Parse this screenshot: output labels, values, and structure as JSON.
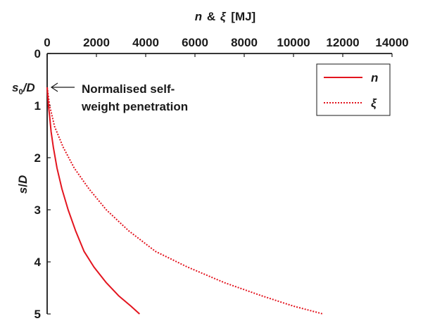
{
  "chart_data": {
    "type": "line",
    "title": "",
    "xlabel_parts": {
      "n": "n",
      "amp": "&",
      "xi": "ξ",
      "unit": "[MJ]"
    },
    "ylabel_parts": {
      "s": "s",
      "slash": "/",
      "D": "D"
    },
    "x_axis_position": "top",
    "y_axis_direction": "downward",
    "xlim": [
      0,
      14000
    ],
    "ylim": [
      0,
      5
    ],
    "xticks": [
      0,
      2000,
      4000,
      6000,
      8000,
      10000,
      12000,
      14000
    ],
    "yticks": [
      0,
      1,
      2,
      3,
      4,
      5
    ],
    "grid": false,
    "legend_position": "top-right",
    "series": [
      {
        "name": "n",
        "style": "solid",
        "color": "#e3151f",
        "points": [
          [
            0,
            0.65
          ],
          [
            50,
            1.0
          ],
          [
            100,
            1.2
          ],
          [
            160,
            1.5
          ],
          [
            250,
            1.8
          ],
          [
            400,
            2.2
          ],
          [
            600,
            2.6
          ],
          [
            850,
            3.0
          ],
          [
            1150,
            3.4
          ],
          [
            1500,
            3.8
          ],
          [
            1900,
            4.1
          ],
          [
            2400,
            4.4
          ],
          [
            2900,
            4.65
          ],
          [
            3400,
            4.85
          ],
          [
            3750,
            5.0
          ]
        ]
      },
      {
        "name": "ξ",
        "style": "dotted",
        "color": "#e3151f",
        "points": [
          [
            0,
            0.65
          ],
          [
            100,
            1.0
          ],
          [
            300,
            1.4
          ],
          [
            650,
            1.8
          ],
          [
            1100,
            2.2
          ],
          [
            1700,
            2.6
          ],
          [
            2400,
            3.0
          ],
          [
            3300,
            3.4
          ],
          [
            4400,
            3.8
          ],
          [
            5700,
            4.1
          ],
          [
            7200,
            4.4
          ],
          [
            8700,
            4.65
          ],
          [
            10000,
            4.85
          ],
          [
            11200,
            5.0
          ]
        ]
      }
    ],
    "annotation": {
      "marker_label_s": "s",
      "marker_label_sub": "0",
      "marker_label_rest": "/D",
      "marker_value": 0.65,
      "text_line1": "Normalised self-",
      "text_line2": "weight penetration"
    }
  }
}
